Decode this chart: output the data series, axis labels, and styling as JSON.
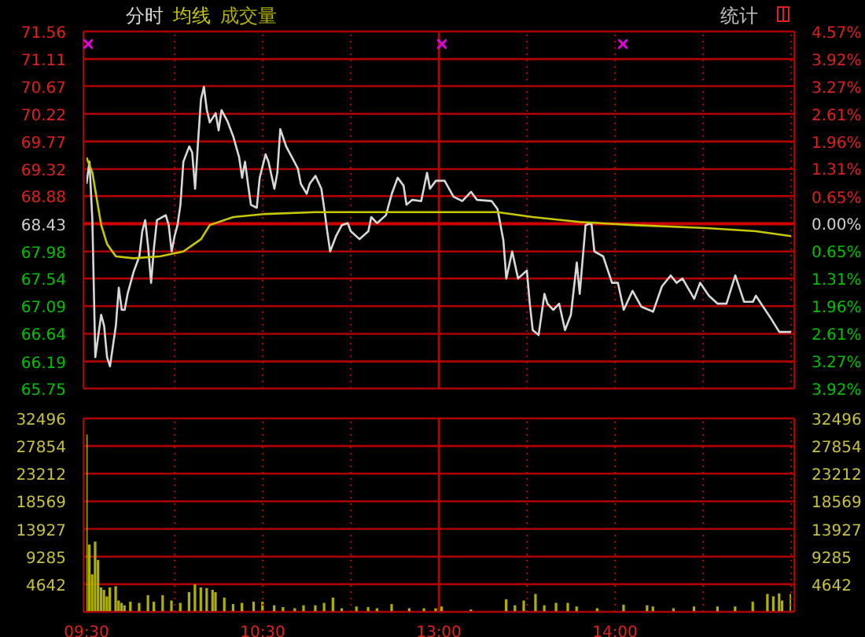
{
  "chart_data": [
    {
      "type": "line",
      "annotations": [
        "统计"
      ],
      "legend": "top left",
      "grid": "y",
      "marker": "none",
      "tick_labels": "y",
      "categories": [
        "09:30",
        null,
        null,
        null,
        null,
        null,
        null,
        null,
        null,
        null,
        null,
        null,
        null,
        null,
        null,
        null,
        null,
        null,
        null,
        null,
        null,
        null,
        null,
        null,
        null,
        null,
        null,
        null,
        null,
        null,
        null,
        null,
        null,
        null,
        null,
        null,
        null,
        null,
        null,
        null,
        null,
        null,
        null,
        null,
        null,
        null,
        null,
        null,
        null,
        null,
        null,
        null,
        null,
        null,
        null,
        null,
        null,
        null,
        null,
        null,
        "10:30",
        null,
        null,
        null,
        null,
        null,
        null,
        null,
        null,
        null,
        null,
        null,
        null,
        null,
        null,
        null,
        null,
        null,
        null,
        null,
        null,
        null,
        null,
        null,
        null,
        null,
        null,
        null,
        null,
        null,
        null,
        null,
        null,
        null,
        null,
        null,
        null,
        null,
        null,
        null,
        null,
        null,
        null,
        null,
        null,
        null,
        null,
        null,
        null,
        null,
        null,
        null,
        null,
        null,
        null,
        null,
        null,
        null,
        null,
        null,
        "13:00",
        null,
        null,
        null,
        null,
        null,
        null,
        null,
        null,
        null,
        null,
        null,
        null,
        null,
        null,
        null,
        null,
        null,
        null,
        null,
        null,
        null,
        null,
        null,
        null,
        null,
        null,
        null,
        null,
        null,
        null,
        null,
        null,
        null,
        null,
        null,
        null,
        null,
        null,
        null,
        null,
        null,
        null,
        null,
        null,
        null,
        null,
        null,
        null,
        null,
        null,
        null,
        null,
        null,
        null,
        null,
        null,
        null,
        null,
        null,
        "14:00",
        null,
        null,
        null,
        null,
        null,
        null,
        null,
        null,
        null,
        null,
        null,
        null,
        null,
        null,
        null,
        null,
        null,
        null,
        null,
        null,
        null,
        null,
        null,
        null,
        null,
        null,
        null,
        null,
        null,
        null,
        null,
        null,
        null,
        null,
        null,
        null,
        null,
        null,
        null,
        null,
        null,
        null,
        null,
        null,
        null,
        null,
        null,
        null,
        null,
        null,
        null,
        null,
        null,
        null,
        null,
        null,
        null,
        null,
        null,
        null
      ],
      "ylim": [
        65.75,
        71.56
      ],
      "yticks": [
        65.75,
        66.19,
        66.64,
        67.09,
        67.54,
        67.98,
        68.43,
        68.88,
        69.32,
        69.77,
        70.22,
        70.67,
        71.11,
        71.56
      ],
      "y2lim": [
        -3.92,
        4.57
      ],
      "y2ticks": [
        {
          "value": -3.92,
          "label": "3.92%"
        },
        {
          "value": -3.27,
          "label": "3.27%"
        },
        {
          "value": -2.61,
          "label": "2.61%"
        },
        {
          "value": -1.96,
          "label": "1.96%"
        },
        {
          "value": -1.31,
          "label": "1.31%"
        },
        {
          "value": -0.65,
          "label": "0.65%"
        },
        {
          "value": 0,
          "label": "0.00%"
        },
        {
          "value": 0.65,
          "label": "0.65%"
        },
        {
          "value": 1.31,
          "label": "1.31%"
        },
        {
          "value": 1.96,
          "label": "1.96%"
        },
        {
          "value": 2.61,
          "label": "2.61%"
        },
        {
          "value": 3.27,
          "label": "3.27%"
        },
        {
          "value": 3.92,
          "label": "3.92%"
        },
        {
          "value": 4.57,
          "label": "4.57%"
        }
      ],
      "ref_lines": [
        {
          "axis": "y",
          "value": 68.43,
          "color": "#d00000"
        },
        {
          "axis": "x",
          "value": "13:00",
          "color": "#c00000"
        }
      ],
      "series": [
        {
          "name": "分时",
          "color": "#d8d8d8",
          "values": [
            69.08,
            69.44,
            68.49,
            66.26,
            null,
            66.95,
            66.77,
            66.26,
            66.11,
            null,
            66.77,
            67.39,
            67.03,
            67.03,
            67.29,
            null,
            67.64,
            null,
            67.9,
            68.31,
            68.49,
            68.05,
            67.47,
            68.05,
            68.49,
            null,
            null,
            68.57,
            68.41,
            67.98,
            68.23,
            68.41,
            68.74,
            69.44,
            null,
            69.69,
            69.59,
            69.0,
            69.77,
            70.46,
            70.66,
            70.28,
            70.08,
            null,
            70.23,
            69.95,
            70.28,
            null,
            70.1,
            null,
            69.85,
            null,
            69.51,
            69.18,
            69.44,
            69.08,
            68.74,
            null,
            68.69,
            69.18,
            null,
            69.56,
            69.44,
            null,
            69.0,
            69.26,
            69.97,
            null,
            69.69,
            null,
            69.51,
            null,
            69.33,
            69.08,
            null,
            68.92,
            69.08,
            null,
            69.21,
            null,
            69.0,
            68.67,
            68.31,
            67.98,
            null,
            68.23,
            null,
            68.41,
            null,
            68.44,
            68.31,
            null,
            null,
            68.18,
            null,
            null,
            68.31,
            68.54,
            null,
            68.44,
            null,
            null,
            68.57,
            null,
            68.92,
            null,
            69.18,
            null,
            69.05,
            68.74,
            null,
            68.82,
            null,
            null,
            68.8,
            null,
            69.26,
            69.0,
            null,
            69.13,
            null,
            null,
            69.13,
            null,
            null,
            68.87,
            null,
            null,
            68.8,
            null,
            null,
            68.95,
            null,
            68.82,
            null,
            null,
            null,
            null,
            68.8,
            null,
            68.67,
            null,
            68.16,
            67.54,
            null,
            67.98,
            null,
            67.54,
            null,
            null,
            67.67,
            67.13,
            66.7,
            null,
            66.62,
            null,
            67.29,
            67.13,
            null,
            67.03,
            null,
            67.13,
            null,
            66.7,
            null,
            66.95,
            null,
            67.8,
            67.29,
            null,
            68.41,
            null,
            68.44,
            67.98,
            null,
            null,
            67.9,
            null,
            null,
            67.47,
            null,
            67.47,
            null,
            67.03,
            null,
            null,
            67.34,
            null,
            null,
            67.08,
            null,
            null,
            null,
            67.0,
            null,
            null,
            67.41,
            null,
            null,
            67.59,
            null,
            67.47,
            null,
            67.54,
            null,
            null,
            null,
            67.21,
            null,
            67.47,
            null,
            null,
            67.26,
            null,
            null,
            67.13,
            null,
            null,
            67.13,
            null,
            null,
            67.59,
            null,
            null,
            67.16,
            null,
            null,
            67.16,
            67.26,
            null,
            null,
            null,
            null,
            66.9,
            null,
            null,
            66.67,
            null,
            null,
            null,
            66.67
          ]
        },
        {
          "name": "均线",
          "color": "#c8c800",
          "values": [
            69.51,
            null,
            69.26,
            null,
            null,
            68.41,
            null,
            68.1,
            null,
            null,
            67.9,
            null,
            null,
            null,
            null,
            null,
            67.87,
            null,
            null,
            null,
            null,
            null,
            null,
            null,
            null,
            67.9,
            null,
            null,
            null,
            null,
            null,
            null,
            null,
            67.98,
            null,
            null,
            null,
            null,
            null,
            68.18,
            null,
            null,
            68.41,
            null,
            null,
            null,
            null,
            null,
            null,
            null,
            68.54,
            null,
            null,
            null,
            null,
            null,
            null,
            null,
            null,
            null,
            null,
            68.59,
            null,
            null,
            null,
            null,
            null,
            null,
            null,
            null,
            null,
            null,
            null,
            null,
            null,
            null,
            null,
            null,
            68.62,
            null,
            null,
            null,
            null,
            null,
            null,
            null,
            null,
            null,
            null,
            null,
            null,
            null,
            null,
            null,
            null,
            null,
            68.62,
            null,
            null,
            null,
            null,
            null,
            null,
            null,
            null,
            null,
            null,
            null,
            null,
            null,
            null,
            null,
            null,
            null,
            null,
            null,
            null,
            null,
            null,
            null,
            null,
            68.62,
            null,
            null,
            null,
            null,
            null,
            null,
            null,
            null,
            null,
            null,
            null,
            null,
            null,
            null,
            null,
            null,
            null,
            null,
            68.62,
            null,
            null,
            null,
            null,
            null,
            null,
            null,
            null,
            null,
            null,
            null,
            68.54,
            null,
            null,
            null,
            null,
            null,
            null,
            null,
            null,
            null,
            null,
            null,
            null,
            null,
            null,
            null,
            68.46,
            null,
            null,
            null,
            null,
            null,
            null,
            null,
            null,
            null,
            null,
            null,
            null,
            null,
            null,
            null,
            null,
            null,
            68.41,
            null,
            null,
            null,
            null,
            null,
            null,
            null,
            null,
            null,
            null,
            null,
            null,
            null,
            null,
            null,
            null,
            null,
            null,
            null,
            null,
            null,
            null,
            null,
            null,
            68.36,
            null,
            null,
            null,
            null,
            null,
            null,
            null,
            null,
            null,
            null,
            null,
            null,
            null,
            null,
            null,
            null,
            68.31,
            null,
            null,
            null,
            null,
            null,
            null,
            null,
            null,
            null,
            null,
            null,
            68.23
          ]
        }
      ]
    },
    {
      "type": "bar",
      "legend": "top left",
      "grid": "y",
      "categories": [
        "09:30",
        null,
        null,
        null,
        null,
        null,
        null,
        null,
        null,
        null,
        null,
        null,
        null,
        null,
        null,
        null,
        null,
        null,
        null,
        null,
        null,
        null,
        null,
        null,
        null,
        null,
        null,
        null,
        null,
        null,
        null,
        null,
        null,
        null,
        null,
        null,
        null,
        null,
        null,
        null,
        null,
        null,
        null,
        null,
        null,
        null,
        null,
        null,
        null,
        null,
        null,
        null,
        null,
        null,
        null,
        null,
        null,
        null,
        null,
        null,
        "10:30",
        null,
        null,
        null,
        null,
        null,
        null,
        null,
        null,
        null,
        null,
        null,
        null,
        null,
        null,
        null,
        null,
        null,
        null,
        null,
        null,
        null,
        null,
        null,
        null,
        null,
        null,
        null,
        null,
        null,
        null,
        null,
        null,
        null,
        null,
        null,
        null,
        null,
        null,
        null,
        null,
        null,
        null,
        null,
        null,
        null,
        null,
        null,
        null,
        null,
        null,
        null,
        null,
        null,
        null,
        null,
        null,
        null,
        null,
        null,
        "13:00",
        null,
        null,
        null,
        null,
        null,
        null,
        null,
        null,
        null,
        null,
        null,
        null,
        null,
        null,
        null,
        null,
        null,
        null,
        null,
        null,
        null,
        null,
        null,
        null,
        null,
        null,
        null,
        null,
        null,
        null,
        null,
        null,
        null,
        null,
        null,
        null,
        null,
        null,
        null,
        null,
        null,
        null,
        null,
        null,
        null,
        null,
        null,
        null,
        null,
        null,
        null,
        null,
        null,
        null,
        null,
        null,
        null,
        null,
        null,
        "14:00",
        null,
        null,
        null,
        null,
        null,
        null,
        null,
        null,
        null,
        null,
        null,
        null,
        null,
        null,
        null,
        null,
        null,
        null,
        null,
        null,
        null,
        null,
        null,
        null,
        null,
        null,
        null,
        null,
        null,
        null,
        null,
        null,
        null,
        null,
        null,
        null,
        null,
        null,
        null,
        null,
        null,
        null,
        null,
        null,
        null,
        null,
        null,
        null,
        null,
        null,
        null,
        null,
        null,
        null,
        null,
        null,
        null,
        null,
        null,
        null
      ],
      "ylim": [
        0,
        32496
      ],
      "yticks": [
        4642,
        9285,
        13927,
        18569,
        23212,
        27854,
        32496
      ],
      "y2lim": [
        0,
        32496
      ],
      "y2ticks": [
        4642,
        9285,
        13927,
        18569,
        23212,
        27854,
        32496
      ],
      "ref_lines": [
        {
          "axis": "x",
          "value": "13:00",
          "color": "#c00000"
        }
      ],
      "series": [
        {
          "name": "成交量",
          "color": "#b0b000",
          "values": [
            29800,
            11300,
            6300,
            11800,
            8700,
            4100,
            3700,
            2600,
            4100,
            null,
            4300,
            1900,
            1500,
            1100,
            null,
            1700,
            null,
            null,
            1500,
            null,
            null,
            2800,
            null,
            1700,
            null,
            null,
            2800,
            null,
            null,
            1900,
            null,
            null,
            1500,
            null,
            null,
            3300,
            null,
            4600,
            null,
            4100,
            null,
            4000,
            null,
            3700,
            3300,
            null,
            null,
            2400,
            null,
            null,
            1300,
            null,
            null,
            1500,
            null,
            null,
            null,
            1700,
            null,
            null,
            1700,
            null,
            null,
            null,
            1100,
            null,
            null,
            800,
            null,
            null,
            null,
            600,
            null,
            null,
            1100,
            null,
            null,
            null,
            1100,
            null,
            null,
            1500,
            null,
            null,
            2400,
            null,
            null,
            600,
            null,
            null,
            null,
            null,
            900,
            null,
            null,
            null,
            800,
            null,
            null,
            600,
            null,
            null,
            null,
            null,
            1300,
            null,
            null,
            null,
            null,
            null,
            600,
            null,
            null,
            null,
            null,
            600,
            null,
            null,
            null,
            600,
            null,
            900,
            null,
            null,
            null,
            null,
            null,
            null,
            null,
            null,
            null,
            400,
            null,
            null,
            null,
            null,
            null,
            null,
            null,
            null,
            null,
            null,
            null,
            2100,
            null,
            null,
            1100,
            null,
            null,
            1900,
            null,
            null,
            null,
            3000,
            null,
            null,
            1100,
            null,
            null,
            null,
            1500,
            null,
            null,
            null,
            1500,
            null,
            null,
            900,
            null,
            null,
            null,
            null,
            null,
            null,
            600,
            null,
            null,
            null,
            null,
            null,
            null,
            null,
            null,
            1200,
            null,
            null,
            null,
            null,
            null,
            null,
            null,
            1100,
            null,
            900,
            null,
            null,
            null,
            null,
            null,
            null,
            600,
            null,
            null,
            null,
            null,
            null,
            null,
            900,
            null,
            null,
            null,
            null,
            null,
            null,
            null,
            900,
            null,
            null,
            null,
            null,
            null,
            900,
            null,
            null,
            null,
            null,
            null,
            1700,
            null,
            null,
            null,
            null,
            3000,
            null,
            2600,
            null,
            3100,
            1900,
            null,
            null,
            3000
          ]
        }
      ]
    }
  ]
}
